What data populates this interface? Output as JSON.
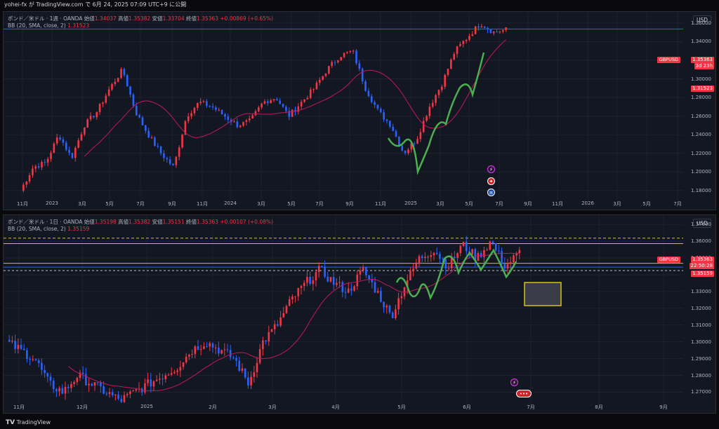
{
  "topbar": {
    "text": "yohei-fx が TradingView.com で 6月 24, 2025 07:09 UTC+9 に公開"
  },
  "pane1": {
    "title": "ポンド／米ドル · 1週 · OANDA",
    "ohlc": [
      {
        "k": "始値",
        "v": "1.34037"
      },
      {
        "k": "高値",
        "v": "1.35382"
      },
      {
        "k": "安値",
        "v": "1.33704"
      },
      {
        "k": "終値",
        "v": "1.35363"
      }
    ],
    "change": "+0.00869 (+0.65%)",
    "indicator": "BB (20, SMA, close, 2)",
    "indicator_value": "1.31523",
    "currency": "USD",
    "symbol": "GBPUSD",
    "last_price": "1.35363",
    "countdown": "3d 23h",
    "bb_price": "1.31523",
    "price_ticks": [
      "1.36000",
      "1.34000",
      "1.32000",
      "1.30000",
      "1.28000",
      "1.26000",
      "1.24000",
      "1.22000",
      "1.20000",
      "1.18000"
    ],
    "time_ticks": [
      "11月",
      "2023",
      "3月",
      "5月",
      "7月",
      "9月",
      "11月",
      "2024",
      "3月",
      "5月",
      "7月",
      "9月",
      "11月",
      "2025",
      "3月",
      "5月",
      "7月",
      "9月",
      "11月",
      "2026",
      "3月",
      "5月",
      "7月"
    ],
    "icons": [
      "lightning-icon",
      "flag-icon",
      "us-flag-icon"
    ]
  },
  "pane2": {
    "title": "ポンド／米ドル · 1日 · OANDA",
    "ohlc": [
      {
        "k": "始値",
        "v": "1.35198"
      },
      {
        "k": "高値",
        "v": "1.35382"
      },
      {
        "k": "安値",
        "v": "1.35151"
      },
      {
        "k": "終値",
        "v": "1.35363"
      }
    ],
    "change": "+0.00107 (+0.08%)",
    "indicator": "BB (20, SMA, close, 2)",
    "indicator_value": "1.35159",
    "currency": "USD",
    "symbol": "GBPUSD",
    "last_price": "1.35363",
    "countdown": "22:50:28",
    "bb_price": "1.35159",
    "price_ticks": [
      "1.37000",
      "1.36000",
      "1.35000",
      "1.34000",
      "1.33000",
      "1.32000",
      "1.31000",
      "1.30000",
      "1.29000",
      "1.28000",
      "1.27000"
    ],
    "time_ticks": [
      "11月",
      "12月",
      "2025",
      "2月",
      "3月",
      "4月",
      "5月",
      "6月",
      "7月",
      "8月",
      "9月"
    ],
    "icons": [
      "lightning-icon",
      "event-icon"
    ]
  },
  "footer": {
    "brand": "TradingView"
  },
  "colors": {
    "up": "#f23645",
    "down": "#2962ff",
    "bb": "#c2185b",
    "wave": "#4caf50",
    "level_yellow": "#d4c21b",
    "hline_blue": "#2962ff",
    "bg": "#131722",
    "grid": "#1e222d"
  }
}
